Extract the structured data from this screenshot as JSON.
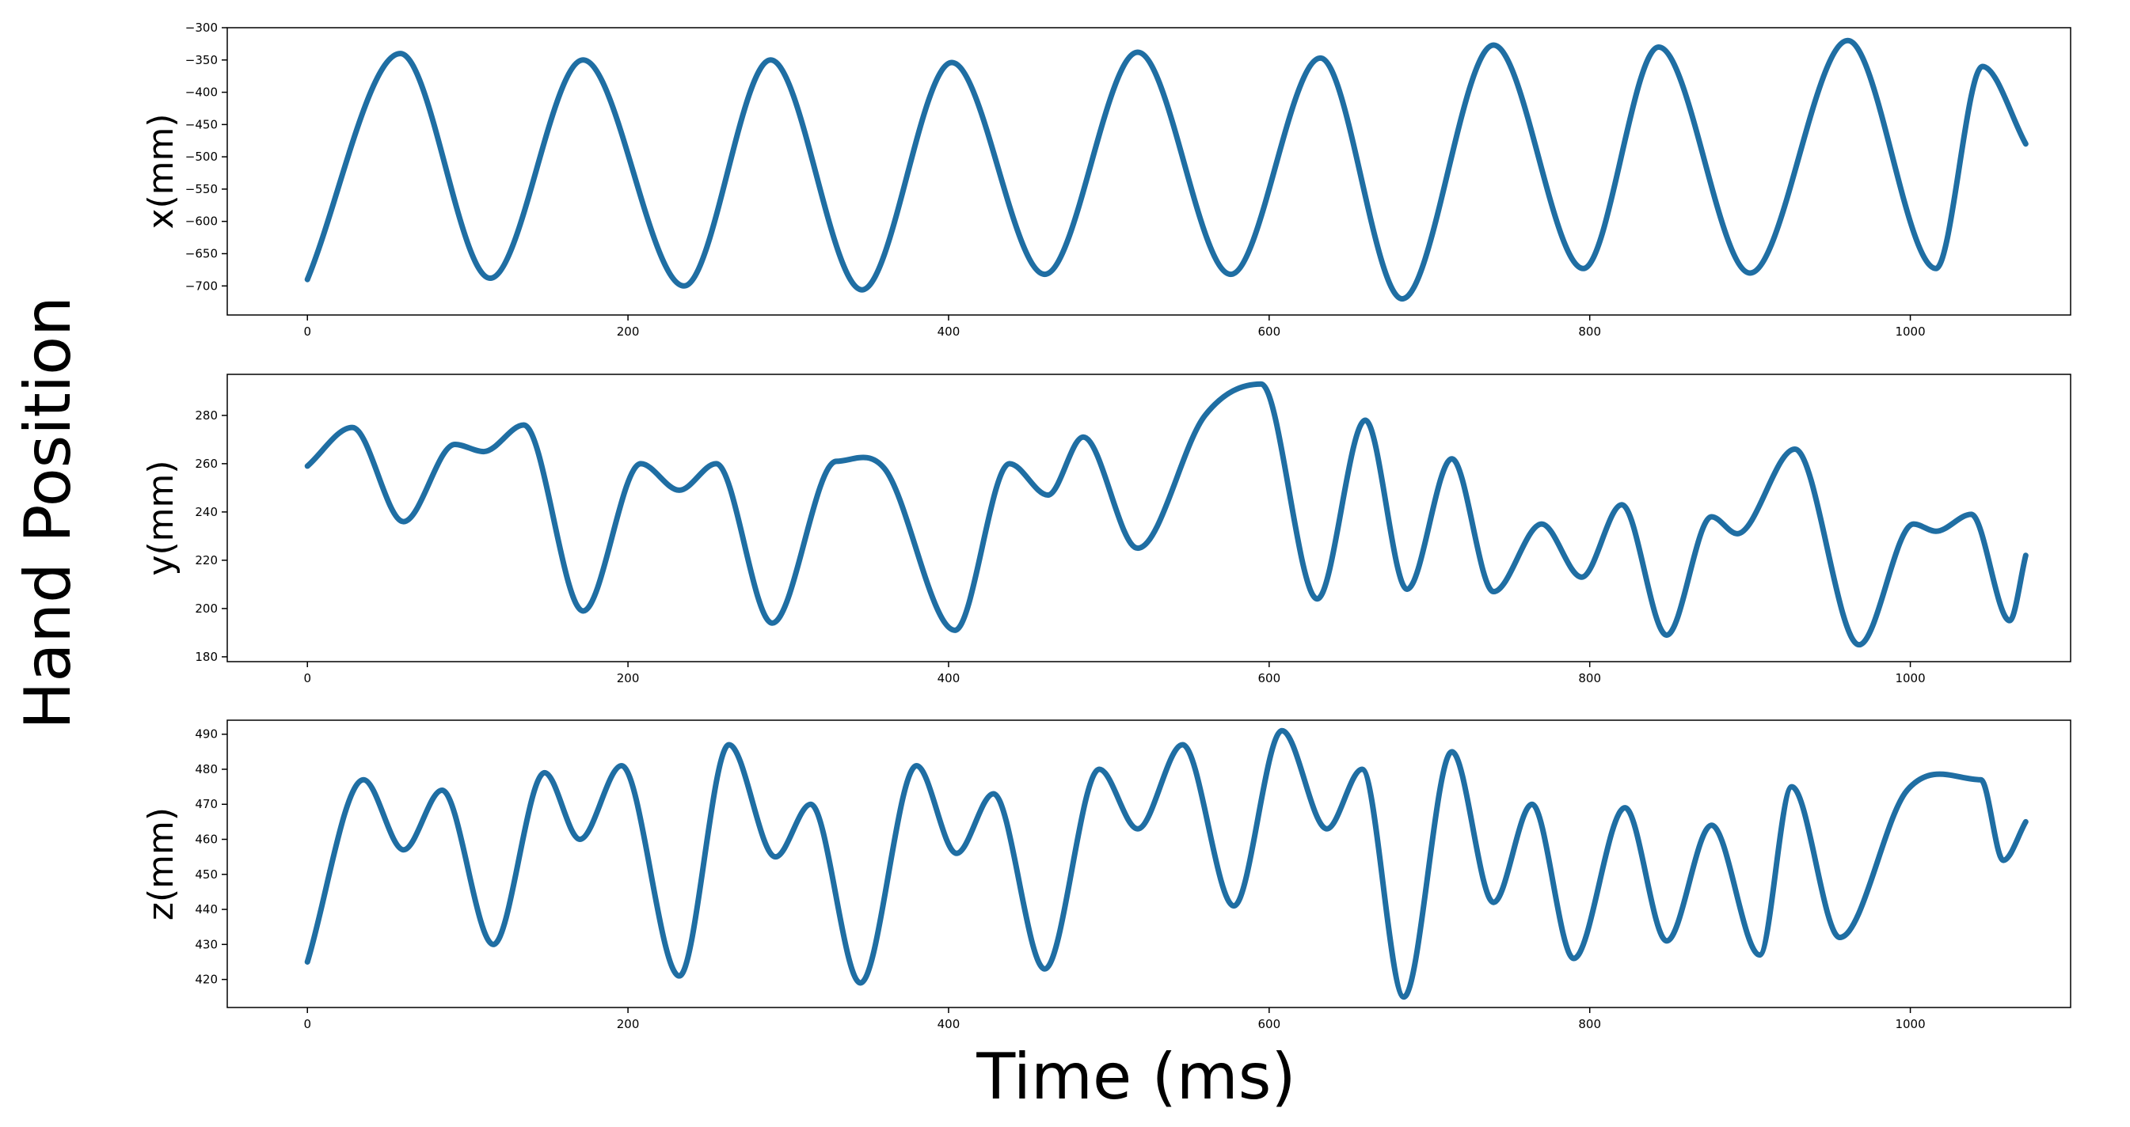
{
  "figure": {
    "ylabel": "Hand Position",
    "xlabel": "Time (ms)"
  },
  "colors": {
    "line": "#1f6ea3"
  },
  "chart_data": [
    {
      "type": "line",
      "title": "",
      "xlabel": "",
      "ylabel": "x(mm)",
      "xlim": [
        -50,
        1100
      ],
      "ylim": [
        -745,
        -300
      ],
      "xticks": [
        0,
        200,
        400,
        600,
        800,
        1000
      ],
      "yticks": [
        -700,
        -650,
        -600,
        -550,
        -500,
        -450,
        -400,
        -350,
        -300
      ],
      "grid": false,
      "series": [
        {
          "x": [
            0,
            58,
            114,
            172,
            235,
            289,
            346,
            402,
            460,
            518,
            576,
            632,
            683,
            740,
            796,
            843,
            900,
            961,
            1016,
            1045,
            1072
          ],
          "y": [
            -690,
            -340,
            -688,
            -350,
            -700,
            -350,
            -706,
            -354,
            -682,
            -338,
            -682,
            -347,
            -720,
            -327,
            -673,
            -330,
            -680,
            -320,
            -673,
            -360,
            -480
          ]
        }
      ]
    },
    {
      "type": "line",
      "title": "",
      "xlabel": "",
      "ylabel": "y(mm)",
      "xlim": [
        -50,
        1100
      ],
      "ylim": [
        178,
        297
      ],
      "xticks": [
        0,
        200,
        400,
        600,
        800,
        1000
      ],
      "yticks": [
        180,
        200,
        220,
        240,
        260,
        280
      ],
      "grid": false,
      "series": [
        {
          "x": [
            0,
            28,
            60,
            92,
            110,
            135,
            172,
            208,
            232,
            255,
            290,
            330,
            360,
            404,
            438,
            462,
            484,
            518,
            560,
            595,
            630,
            660,
            686,
            714,
            740,
            770,
            795,
            820,
            848,
            876,
            892,
            928,
            968,
            1002,
            1016,
            1038,
            1062,
            1072
          ],
          "y": [
            259,
            275,
            236,
            268,
            265,
            276,
            199,
            260,
            249,
            260,
            194,
            261,
            258,
            191,
            260,
            247,
            271,
            225,
            280,
            293,
            204,
            278,
            208,
            262,
            207,
            235,
            213,
            243,
            189,
            238,
            231,
            266,
            185,
            235,
            232,
            239,
            195,
            222
          ]
        }
      ]
    },
    {
      "type": "line",
      "title": "",
      "xlabel": "",
      "ylabel": "z(mm)",
      "xlim": [
        -50,
        1100
      ],
      "ylim": [
        412,
        494
      ],
      "xticks": [
        0,
        200,
        400,
        600,
        800,
        1000
      ],
      "yticks": [
        420,
        430,
        440,
        450,
        460,
        470,
        480,
        490
      ],
      "grid": false,
      "series": [
        {
          "x": [
            0,
            35,
            60,
            84,
            116,
            148,
            170,
            196,
            232,
            263,
            292,
            314,
            345,
            380,
            405,
            428,
            460,
            494,
            518,
            546,
            578,
            608,
            636,
            658,
            684,
            714,
            740,
            764,
            790,
            822,
            848,
            876,
            906,
            926,
            956,
            998,
            1044,
            1058,
            1072
          ],
          "y": [
            425,
            477,
            457,
            474,
            430,
            479,
            460,
            481,
            421,
            487,
            455,
            470,
            419,
            481,
            456,
            473,
            423,
            480,
            463,
            487,
            441,
            491,
            463,
            480,
            415,
            485,
            442,
            470,
            426,
            469,
            431,
            464,
            427,
            475,
            432,
            474,
            477,
            454,
            465
          ]
        }
      ]
    }
  ]
}
